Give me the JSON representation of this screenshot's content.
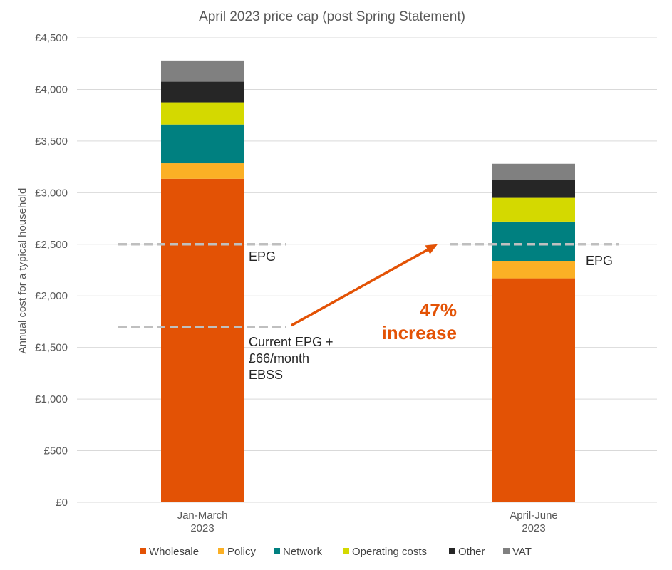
{
  "chart_data": {
    "type": "bar",
    "stacked": true,
    "title": "April 2023 price cap (post Spring Statement)",
    "ylabel": "Annual cost for a typical household",
    "xlabel": "",
    "ylim": [
      0,
      4500
    ],
    "y_tick_step": 500,
    "y_tick_labels": [
      "£0",
      "£500",
      "£1,000",
      "£1,500",
      "£2,000",
      "£2,500",
      "£3,000",
      "£3,500",
      "£4,000",
      "£4,500"
    ],
    "grid": true,
    "legend_position": "bottom",
    "categories": [
      {
        "line1": "Jan-March",
        "line2": "2023"
      },
      {
        "line1": "April-June",
        "line2": "2023"
      }
    ],
    "series": [
      {
        "name": "Wholesale",
        "color": "#E35205",
        "values": [
          3135,
          2170
        ]
      },
      {
        "name": "Policy",
        "color": "#FBB025",
        "values": [
          150,
          165
        ]
      },
      {
        "name": "Network",
        "color": "#008080",
        "values": [
          375,
          385
        ]
      },
      {
        "name": "Operating costs",
        "color": "#D4D900",
        "values": [
          215,
          230
        ]
      },
      {
        "name": "Other",
        "color": "#262626",
        "values": [
          200,
          175
        ]
      },
      {
        "name": "VAT",
        "color": "#808080",
        "values": [
          205,
          155
        ]
      }
    ],
    "reference_lines": [
      {
        "value": 2500,
        "category_index": 0,
        "label_lines": [
          "EPG"
        ],
        "color": "#BFBFBF"
      },
      {
        "value": 2500,
        "category_index": 1,
        "label_lines": [
          "EPG"
        ],
        "color": "#BFBFBF"
      },
      {
        "value": 1700,
        "category_index": 0,
        "label_lines": [
          "Current EPG +",
          "£66/month",
          "EBSS"
        ],
        "color": "#BFBFBF"
      }
    ],
    "arrow": {
      "from_value": 1700,
      "to_value": 2500,
      "color": "#E35205"
    },
    "annotation": {
      "lines": [
        "47%",
        "increase"
      ],
      "color": "#E35205"
    }
  }
}
